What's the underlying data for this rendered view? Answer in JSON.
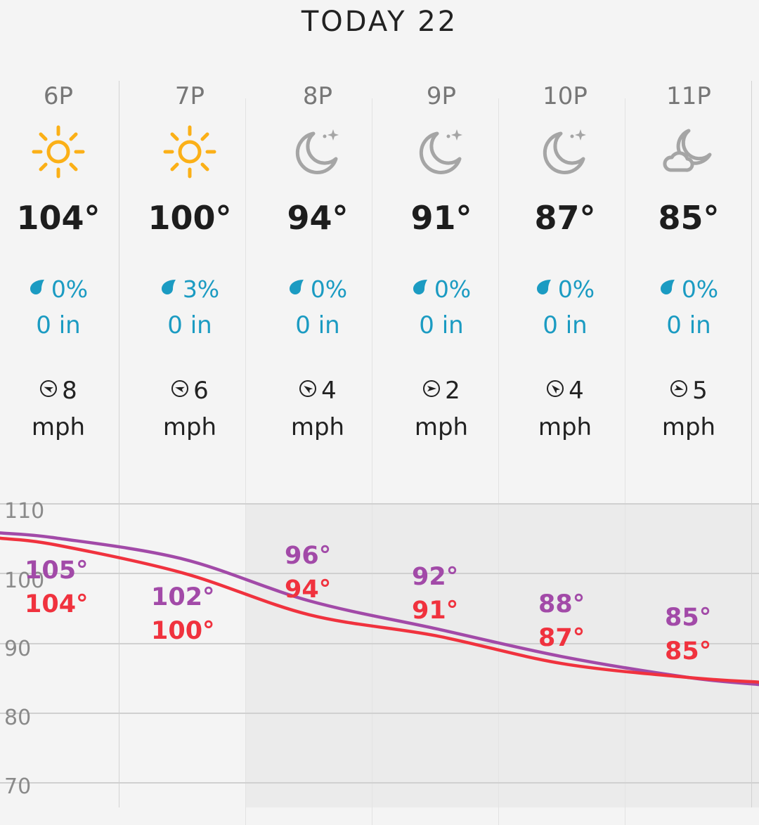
{
  "header": {
    "day_label": "TODAY 22"
  },
  "hours": [
    {
      "time": "6P",
      "icon": "sun-icon",
      "temp": "104°",
      "precip_pct": "0%",
      "precip_amt": "0 in",
      "wind_speed": "8",
      "wind_unit": "mph",
      "wind_icon": "wind-direction-icon"
    },
    {
      "time": "7P",
      "icon": "sun-icon",
      "temp": "100°",
      "precip_pct": "3%",
      "precip_amt": "0 in",
      "wind_speed": "6",
      "wind_unit": "mph",
      "wind_icon": "wind-direction-icon"
    },
    {
      "time": "8P",
      "icon": "moon-stars-icon",
      "temp": "94°",
      "precip_pct": "0%",
      "precip_amt": "0 in",
      "wind_speed": "4",
      "wind_unit": "mph",
      "wind_icon": "wind-direction-icon"
    },
    {
      "time": "9P",
      "icon": "moon-stars-icon",
      "temp": "91°",
      "precip_pct": "0%",
      "precip_amt": "0 in",
      "wind_speed": "2",
      "wind_unit": "mph",
      "wind_icon": "wind-direction-icon"
    },
    {
      "time": "10P",
      "icon": "moon-stars-icon",
      "temp": "87°",
      "precip_pct": "0%",
      "precip_amt": "0 in",
      "wind_speed": "4",
      "wind_unit": "mph",
      "wind_icon": "wind-direction-icon"
    },
    {
      "time": "11P",
      "icon": "moon-cloud-icon",
      "temp": "85°",
      "precip_pct": "0%",
      "precip_amt": "0 in",
      "wind_speed": "5",
      "wind_unit": "mph",
      "wind_icon": "wind-direction-icon"
    }
  ],
  "colors": {
    "precip": "#1b9bc2",
    "sun": "#fbb017",
    "moon": "#a5a5a5",
    "feels_like_line": "#a24aa8",
    "temp_line": "#f0323e"
  },
  "chart_data": {
    "type": "line",
    "categories": [
      "6P",
      "7P",
      "8P",
      "9P",
      "10P",
      "11P"
    ],
    "series": [
      {
        "values": [
          105,
          102,
          96,
          92,
          88,
          85
        ],
        "labels": [
          "105°",
          "102°",
          "96°",
          "92°",
          "88°",
          "85°"
        ]
      },
      {
        "values": [
          104,
          100,
          94,
          91,
          87,
          85
        ],
        "labels": [
          "104°",
          "100°",
          "94°",
          "91°",
          "87°",
          "85°"
        ]
      }
    ],
    "y_ticks": [
      "110",
      "100",
      "90",
      "80",
      "70"
    ],
    "ylim": [
      70,
      110
    ],
    "grid": true
  }
}
